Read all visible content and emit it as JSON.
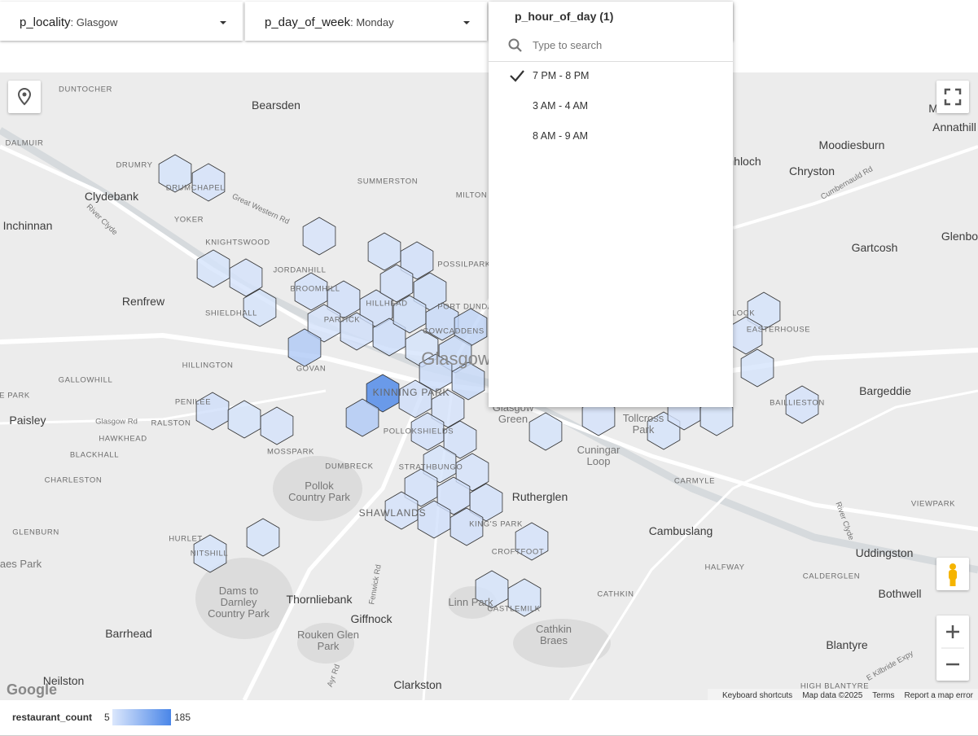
{
  "filters": [
    {
      "label": "p_locality",
      "value": "Glasgow"
    },
    {
      "label": "p_day_of_week",
      "value": "Monday"
    }
  ],
  "dropdown": {
    "title": "p_hour_of_day (1)",
    "search_placeholder": "Type to search",
    "options": [
      {
        "label": "7 PM - 8 PM",
        "selected": true
      },
      {
        "label": "3 AM - 4 AM",
        "selected": false
      },
      {
        "label": "8 AM - 9 AM",
        "selected": false
      }
    ]
  },
  "map": {
    "labels": [
      "DUNTOCHER",
      "Bearsden",
      "DALMUIR",
      "DRUMRY",
      "Clydebank",
      "DRUMCHAPEL",
      "Great Western Rd",
      "SUMMERSTON",
      "MILTON",
      "YOKER",
      "Inchinnan",
      "River Clyde",
      "KNIGHTSWOOD",
      "JORDANHILL",
      "POSSILPARK",
      "Renfrew",
      "BROOMHILL",
      "HILLHEAD",
      "PORT DUNDAS",
      "SHIELDHALL",
      "PARTICK",
      "COWCADDENS",
      "Glasgow",
      "HILLINGTON",
      "GOVAN",
      "GALLOWHILL",
      "KINNING PARK",
      "E PARK",
      "PENILEE",
      "Paisley",
      "Glasgow Rd",
      "RALSTON",
      "HAWKHEAD",
      "POLLOKSHIELDS",
      "MOSSPARK",
      "BLACKHALL",
      "DUMBRECK",
      "STRATHBUNGO",
      "Pollok Country Park",
      "CHARLESTON",
      "Rutherglen",
      "SHAWLANDS",
      "KING'S PARK",
      "GLENBURN",
      "HURLET",
      "NITSHILL",
      "CROFTFOOT",
      "Braes Park",
      "Dams to Darnley Country Park",
      "Thornliebank",
      "Fenwick Rd",
      "Giffnock",
      "Linn Park",
      "CASTLEMILK",
      "Barrhead",
      "Rouken Glen Park",
      "Cathkin Braes",
      "Neilston",
      "Ayr Rd",
      "Clarkston",
      "Glasgow Green",
      "Tollcross Park",
      "Cuningar Loop",
      "CARMYLE",
      "Cambuslang",
      "HALFWAY",
      "CATHKIN",
      "Blantyre",
      "E Kilbride Expy",
      "HIGH BLANTYRE",
      "Bothwell",
      "Uddingston",
      "CALDERGLEN",
      "VIEWPARK",
      "River Clyde",
      "Bargeddie",
      "BAILLIESTON",
      "EASTERHOUSE",
      "LOCK",
      "Gartcosh",
      "Glenboi",
      "Chryston",
      "Cumbernauld Rd",
      "Moodiesburn",
      "Annathill",
      "Mo",
      "nhloch"
    ],
    "logo": "Google",
    "attribution": [
      "Keyboard shortcuts",
      "Map data ©2025",
      "Terms",
      "Report a map error"
    ],
    "hexagons": [
      12,
      14,
      10,
      15,
      18,
      12,
      14,
      12,
      16,
      18,
      20,
      16,
      22,
      14,
      20,
      25,
      22,
      30,
      40,
      60,
      12,
      30,
      185,
      20,
      25,
      30,
      60,
      14,
      18,
      16,
      20,
      12,
      14,
      12,
      14,
      16,
      18,
      16,
      14,
      18,
      20,
      14,
      12,
      12,
      12,
      12,
      12,
      14,
      12,
      14,
      12,
      12,
      14,
      12,
      14,
      12
    ]
  },
  "legend": {
    "title": "restaurant_count",
    "min": 5,
    "max": 185,
    "min_color": "#dbe7fc",
    "max_color": "#4a86e8"
  }
}
